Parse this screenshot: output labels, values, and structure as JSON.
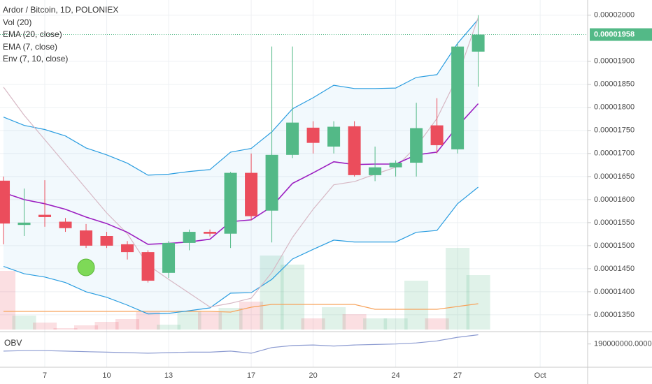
{
  "chart_data": {
    "type": "candlestick",
    "title": "Ardor / Bitcoin, 1D, POLONIEX",
    "x": [
      5,
      6,
      7,
      8,
      9,
      10,
      11,
      12,
      13,
      14,
      15,
      16,
      17,
      18,
      19,
      20,
      21,
      22,
      23,
      24,
      25,
      26,
      27,
      28
    ],
    "xlim": [
      4.83,
      33.3
    ],
    "xticks": [
      7,
      10,
      13,
      17,
      20,
      24,
      27,
      {
        "value": 31,
        "label": "Oct"
      }
    ],
    "ylim": [
      1.315e-05,
      2.033e-05
    ],
    "yticks": [
      {
        "value": 1.35e-05,
        "label": "0.00001350"
      },
      {
        "value": 1.4e-05,
        "label": "0.00001400"
      },
      {
        "value": 1.45e-05,
        "label": "0.00001450"
      },
      {
        "value": 1.5e-05,
        "label": "0.00001500"
      },
      {
        "value": 1.55e-05,
        "label": "0.00001550"
      },
      {
        "value": 1.6e-05,
        "label": "0.00001600"
      },
      {
        "value": 1.65e-05,
        "label": "0.00001650"
      },
      {
        "value": 1.7e-05,
        "label": "0.00001700"
      },
      {
        "value": 1.75e-05,
        "label": "0.00001750"
      },
      {
        "value": 1.8e-05,
        "label": "0.00001800"
      },
      {
        "value": 1.85e-05,
        "label": "0.00001850"
      },
      {
        "value": 1.9e-05,
        "label": "0.00001900"
      },
      {
        "value": 2e-05,
        "label": "0.00002000"
      }
    ],
    "grid": true,
    "up_color": "#53b987",
    "down_color": "#eb4d5c",
    "open": [
      1.641e-05,
      1.545e-05,
      1.567e-05,
      1.552e-05,
      1.533e-05,
      1.521e-05,
      1.503e-05,
      1.486e-05,
      1.441e-05,
      1.506e-05,
      1.53e-05,
      1.526e-05,
      1.658e-05,
      1.576e-05,
      1.697e-05,
      1.756e-05,
      1.715e-05,
      1.759e-05,
      1.653e-05,
      1.67e-05,
      1.68e-05,
      1.761e-05,
      1.709e-05,
      1.921e-05
    ],
    "high": [
      1.65e-05,
      1.624e-05,
      1.642e-05,
      1.56e-05,
      1.547e-05,
      1.53e-05,
      1.51e-05,
      1.49e-05,
      1.51e-05,
      1.535e-05,
      1.535e-05,
      1.66e-05,
      1.7e-05,
      1.932e-05,
      1.932e-05,
      1.77e-05,
      1.77e-05,
      1.77e-05,
      1.715e-05,
      1.685e-05,
      1.81e-05,
      1.82e-05,
      1.94e-05,
      2e-05
    ],
    "low": [
      1.503e-05,
      1.521e-05,
      1.541e-05,
      1.53e-05,
      1.495e-05,
      1.495e-05,
      1.47e-05,
      1.42e-05,
      1.43e-05,
      1.49e-05,
      1.52e-05,
      1.495e-05,
      1.555e-05,
      1.507e-05,
      1.69e-05,
      1.7e-05,
      1.7e-05,
      1.65e-05,
      1.64e-05,
      1.65e-05,
      1.65e-05,
      1.7e-05,
      1.7e-05,
      1.845e-05
    ],
    "close": [
      1.548e-05,
      1.55e-05,
      1.562e-05,
      1.538e-05,
      1.5e-05,
      1.5e-05,
      1.486e-05,
      1.424e-05,
      1.506e-05,
      1.53e-05,
      1.526e-05,
      1.658e-05,
      1.564e-05,
      1.697e-05,
      1.767e-05,
      1.723e-05,
      1.758e-05,
      1.653e-05,
      1.67e-05,
      1.68e-05,
      1.755e-05,
      1.718e-05,
      1.932e-05,
      1.958e-05
    ],
    "price_line": {
      "value": 1.958e-05,
      "label": "0.00001958"
    },
    "volume": {
      "name": "Vol (20)",
      "values": [
        84,
        20,
        10,
        2,
        6,
        11,
        15,
        25,
        7,
        27,
        25,
        31,
        40,
        106,
        93,
        16,
        32,
        22,
        16,
        16,
        70,
        16,
        117,
        78
      ],
      "ma": {
        "color": "#f7a35c",
        "values": [
          26,
          26,
          26,
          26,
          26,
          26,
          26,
          26,
          26,
          26,
          26,
          25,
          32,
          36,
          36,
          36,
          36,
          36,
          29,
          29,
          29,
          29,
          33,
          37
        ]
      }
    },
    "series": [
      {
        "name": "EMA (20, close)",
        "color": "#d7b8c4",
        "values": [
          1.844e-05,
          1.783e-05,
          1.73e-05,
          1.677e-05,
          1.624e-05,
          1.571e-05,
          1.526e-05,
          1.458e-05,
          1.427e-05,
          1.397e-05,
          1.367e-05,
          1.375e-05,
          1.386e-05,
          1.442e-05,
          1.518e-05,
          1.579e-05,
          1.632e-05,
          1.639e-05,
          1.655e-05,
          1.67e-05,
          1.715e-05,
          1.776e-05,
          1.867e-05,
          1.995e-05
        ]
      },
      {
        "name": "EMA (7, close)",
        "color": "#9c1fc1",
        "values": [
          1.615e-05,
          1.6e-05,
          1.591e-05,
          1.579e-05,
          1.562e-05,
          1.548e-05,
          1.529e-05,
          1.503e-05,
          1.505e-05,
          1.508e-05,
          1.514e-05,
          1.552e-05,
          1.556e-05,
          1.585e-05,
          1.635e-05,
          1.658e-05,
          1.682e-05,
          1.676e-05,
          1.677e-05,
          1.677e-05,
          1.697e-05,
          1.703e-05,
          1.759e-05,
          1.808e-05
        ]
      },
      {
        "name": "Env (7, 10, close)",
        "color": "#2a9de0",
        "upper": [
          1.779e-05,
          1.761e-05,
          1.752e-05,
          1.738e-05,
          1.712e-05,
          1.697e-05,
          1.679e-05,
          1.653e-05,
          1.655e-05,
          1.661e-05,
          1.665e-05,
          1.703e-05,
          1.711e-05,
          1.747e-05,
          1.797e-05,
          1.821e-05,
          1.848e-05,
          1.841e-05,
          1.841e-05,
          1.842e-05,
          1.865e-05,
          1.871e-05,
          1.939e-05,
          1.991e-05
        ],
        "lower": [
          1.455e-05,
          1.439e-05,
          1.432e-05,
          1.42e-05,
          1.4e-05,
          1.388e-05,
          1.371e-05,
          1.352e-05,
          1.353e-05,
          1.359e-05,
          1.365e-05,
          1.397e-05,
          1.398e-05,
          1.427e-05,
          1.471e-05,
          1.492e-05,
          1.512e-05,
          1.508e-05,
          1.508e-05,
          1.508e-05,
          1.529e-05,
          1.533e-05,
          1.591e-05,
          1.627e-05
        ]
      }
    ],
    "obv": {
      "name": "OBV",
      "color": "#8c9bd1",
      "ylim": [
        150000000,
        210000000
      ],
      "yticks": [
        {
          "value": 190000000,
          "label": "190000000.0000"
        }
      ],
      "values": [
        176000000,
        177000000,
        177000000,
        176000000,
        175000000,
        174000000,
        173000000,
        172000000,
        173000000,
        174000000,
        174000000,
        176000000,
        172000000,
        183000000,
        187000000,
        188000000,
        186000000,
        188000000,
        189000000,
        190000000,
        192000000,
        196000000,
        203000000,
        208000000
      ]
    }
  }
}
